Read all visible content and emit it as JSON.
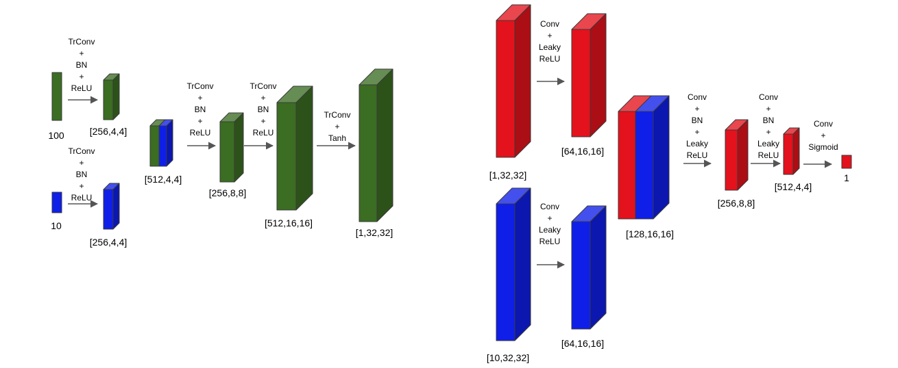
{
  "colors": {
    "green": "#3b6d22",
    "blue": "#0f1fe8",
    "red": "#e4121c",
    "arrow": "#555555",
    "edge": "#3a3a3a"
  },
  "generator": {
    "noise_input": "100",
    "label_input": "10",
    "noise_op": [
      "TrConv",
      "+",
      "BN",
      "+",
      "ReLU"
    ],
    "label_op": [
      "TrConv",
      "+",
      "BN",
      "+",
      "ReLU"
    ],
    "noise_out": "[256,4,4]",
    "label_out": "[256,4,4]",
    "concat": "[512,4,4]",
    "op2": [
      "TrConv",
      "+",
      "BN",
      "+",
      "ReLU"
    ],
    "b2": "[256,8,8]",
    "op3": [
      "TrConv",
      "+",
      "BN",
      "+",
      "ReLU"
    ],
    "b3": "[512,16,16]",
    "op4": [
      "TrConv",
      "+",
      "Tanh"
    ],
    "b4": "[1,32,32]"
  },
  "discriminator": {
    "image_in": "[1,32,32]",
    "label_in": "[10,32,32]",
    "image_op": [
      "Conv",
      "+",
      "Leaky",
      "ReLU"
    ],
    "label_op": [
      "Conv",
      "+",
      "Leaky",
      "ReLU"
    ],
    "image_out": "[64,16,16]",
    "label_out": "[64,16,16]",
    "concat": "[128,16,16]",
    "op2": [
      "Conv",
      "+",
      "BN",
      "+",
      "Leaky",
      "ReLU"
    ],
    "b2": "[256,8,8]",
    "op3": [
      "Conv",
      "+",
      "BN",
      "+",
      "Leaky",
      "ReLU"
    ],
    "b3": "[512,4,4]",
    "op4": [
      "Conv",
      "+",
      "Sigmoid"
    ],
    "out": "1"
  }
}
